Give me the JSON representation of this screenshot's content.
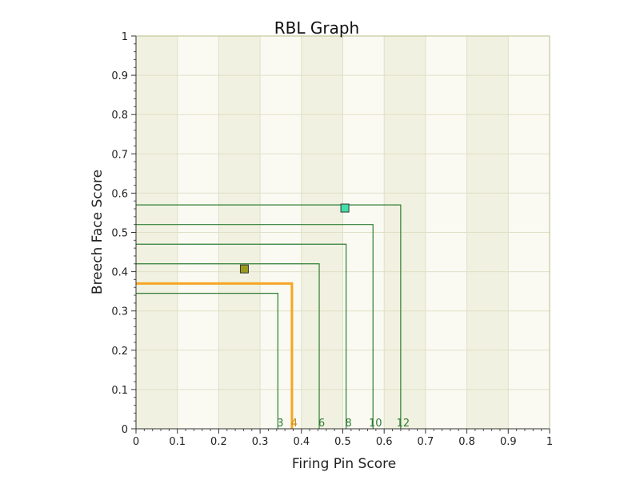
{
  "chart_data": {
    "type": "scatter",
    "title": "RBL Graph",
    "xlabel": "Firing Pin Score",
    "ylabel": "Breech Face Score",
    "xlim": [
      0,
      1
    ],
    "ylim": [
      0,
      1
    ],
    "x_ticks": [
      "0",
      "0.1",
      "0.2",
      "0.3",
      "0.4",
      "0.5",
      "0.6",
      "0.7",
      "0.8",
      "0.9",
      "1"
    ],
    "y_ticks": [
      "0",
      "0.1",
      "0.2",
      "0.3",
      "0.4",
      "0.5",
      "0.6",
      "0.7",
      "0.8",
      "0.9",
      "1"
    ],
    "grid": true,
    "boundaries": [
      {
        "label": "3",
        "x": 0.343,
        "y": 0.345,
        "color": "#2e7d32",
        "highlighted": false
      },
      {
        "label": "4",
        "x": 0.377,
        "y": 0.37,
        "color": "#f5a623",
        "highlighted": true
      },
      {
        "label": "6",
        "x": 0.443,
        "y": 0.42,
        "color": "#2e7d32",
        "highlighted": false
      },
      {
        "label": "8",
        "x": 0.508,
        "y": 0.47,
        "color": "#2e7d32",
        "highlighted": false
      },
      {
        "label": "10",
        "x": 0.573,
        "y": 0.52,
        "color": "#2e7d32",
        "highlighted": false
      },
      {
        "label": "12",
        "x": 0.64,
        "y": 0.57,
        "color": "#2e7d32",
        "highlighted": false
      }
    ],
    "points": [
      {
        "x": 0.262,
        "y": 0.407,
        "color": "#9a9a1e"
      },
      {
        "x": 0.505,
        "y": 0.562,
        "color": "#40e0a8"
      }
    ]
  }
}
